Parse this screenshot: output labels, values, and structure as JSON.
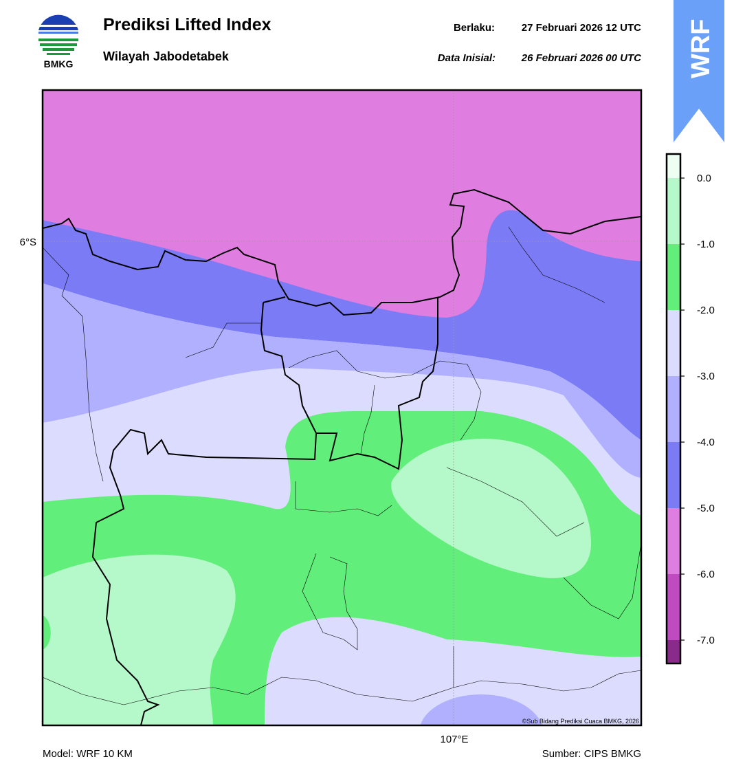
{
  "header": {
    "logo_text": "BMKG",
    "title": "Prediksi Lifted Index",
    "subtitle": "Wilayah Jabodetabek",
    "valid_label": "Berlaku:",
    "valid_time": "27 Februari 2026 12 UTC",
    "init_label": "Data Inisial:",
    "init_time": "26 Februari 2026 00 UTC"
  },
  "badge": "WRF",
  "map": {
    "lat_label": "6°S",
    "lon_label": "107°E",
    "credit": "©Sub Bidang Prediksi Cuaca BMKG, 2026"
  },
  "colorbar": {
    "ticks": [
      "0.0",
      "-1.0",
      "-2.0",
      "-3.0",
      "-4.0",
      "-5.0",
      "-6.0",
      "-7.0"
    ],
    "colors": [
      "#ecfff2",
      "#b5f8c9",
      "#62ee7a",
      "#dcdcff",
      "#b0b0ff",
      "#7b7bf5",
      "#e07de0",
      "#c04ac0",
      "#8a2a8a"
    ]
  },
  "footer": {
    "model": "Model: WRF 10 KM",
    "source": "Sumber: CIPS BMKG"
  }
}
